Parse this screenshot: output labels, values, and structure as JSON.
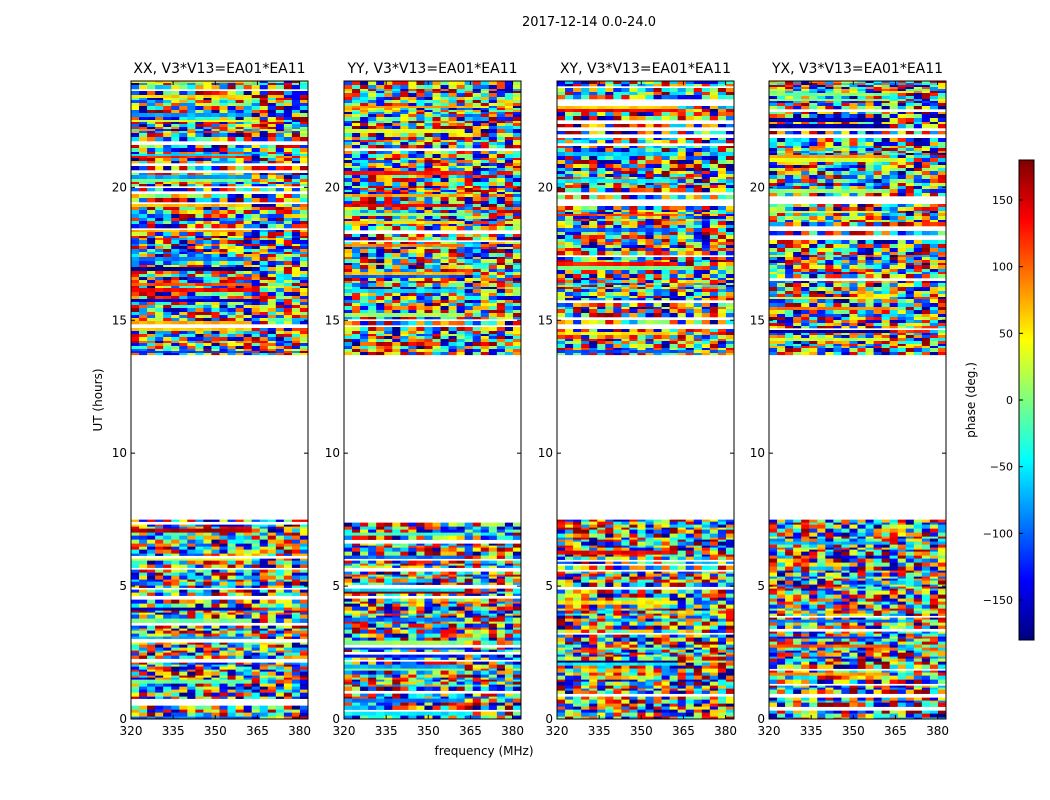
{
  "chart_data": {
    "type": "heatmap",
    "title": "2017-12-14 0.0-24.0",
    "xlabel": "frequency (MHz)",
    "ylabel": "UT (hours)",
    "xlim": [
      320,
      383
    ],
    "ylim": [
      0,
      24
    ],
    "xticks": [
      "320",
      "335",
      "350",
      "365",
      "380"
    ],
    "yticks": [
      "0",
      "5",
      "10",
      "15",
      "20"
    ],
    "panels": [
      {
        "title": "XX, V3*V13=EA01*EA11",
        "polarization": "XX"
      },
      {
        "title": "YY, V3*V13=EA01*EA11",
        "polarization": "YY"
      },
      {
        "title": "XY, V3*V13=EA01*EA11",
        "polarization": "XY"
      },
      {
        "title": "YX, V3*V13=EA01*EA11",
        "polarization": "YX"
      }
    ],
    "colorbar": {
      "label": "phase (deg.)",
      "range": [
        -180,
        180
      ],
      "ticks": [
        "150",
        "100",
        "50",
        "0",
        "−50",
        "−100",
        "−150"
      ],
      "colormap": "jet"
    },
    "data_time_ranges_hours": [
      [
        0.0,
        7.5
      ],
      [
        13.7,
        24.0
      ]
    ],
    "blank_time_ranges_hours": [
      [
        7.5,
        13.7
      ]
    ]
  }
}
